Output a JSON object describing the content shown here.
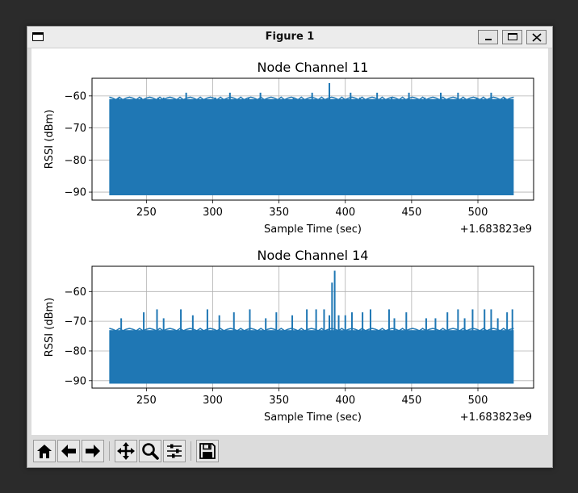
{
  "window": {
    "title": "Figure 1",
    "controls": [
      "minimize",
      "maximize",
      "close"
    ]
  },
  "toolbar": {
    "buttons": [
      {
        "name": "home-icon",
        "label": "Home"
      },
      {
        "name": "back-icon",
        "label": "Back"
      },
      {
        "name": "forward-icon",
        "label": "Forward"
      },
      {
        "name": "pan-icon",
        "label": "Pan"
      },
      {
        "name": "zoom-icon",
        "label": "Zoom"
      },
      {
        "name": "configure-subplots-icon",
        "label": "Configure subplots"
      },
      {
        "name": "save-icon",
        "label": "Save"
      }
    ]
  },
  "colors": {
    "series": "#1f77b4",
    "grid": "#b0b0b0"
  },
  "chart_data": [
    {
      "type": "line",
      "title": "Node Channel 11",
      "xlabel": "Sample Time (sec)",
      "ylabel": "RSSI (dBm)",
      "offset_text": "+1.683823e9",
      "xlim": [
        209,
        542
      ],
      "ylim": [
        -92.5,
        -54.5
      ],
      "xticks": [
        250,
        300,
        350,
        400,
        450,
        500
      ],
      "yticks": [
        -60,
        -70,
        -80,
        -90
      ],
      "grid": true,
      "series": [
        {
          "x_range": [
            222,
            527
          ],
          "floor": -91,
          "base_top": -61,
          "spikes": [
            [
              229,
              -60.5
            ],
            [
              246,
              -60.5
            ],
            [
              259,
              -60.5
            ],
            [
              263,
              -60.5
            ],
            [
              280,
              -59
            ],
            [
              302,
              -60.5
            ],
            [
              313,
              -59
            ],
            [
              327,
              -60.5
            ],
            [
              336,
              -59
            ],
            [
              361,
              -60.5
            ],
            [
              375,
              -59
            ],
            [
              388,
              -56
            ],
            [
              404,
              -59
            ],
            [
              411,
              -60.5
            ],
            [
              424,
              -59
            ],
            [
              435,
              -60.5
            ],
            [
              448,
              -59
            ],
            [
              460,
              -60.5
            ],
            [
              472,
              -59
            ],
            [
              485,
              -59
            ],
            [
              499,
              -60.5
            ],
            [
              510,
              -59
            ],
            [
              520,
              -60.5
            ]
          ]
        }
      ]
    },
    {
      "type": "line",
      "title": "Node Channel 14",
      "xlabel": "Sample Time (sec)",
      "ylabel": "RSSI (dBm)",
      "offset_text": "+1.683823e9",
      "xlim": [
        209,
        542
      ],
      "ylim": [
        -92.5,
        -51.5
      ],
      "xticks": [
        250,
        300,
        350,
        400,
        450,
        500
      ],
      "yticks": [
        -60,
        -70,
        -80,
        -90
      ],
      "grid": true,
      "series": [
        {
          "x_range": [
            222,
            527
          ],
          "floor": -91,
          "base_top": -73,
          "spikes": [
            [
              231,
              -69
            ],
            [
              248,
              -67
            ],
            [
              258,
              -66
            ],
            [
              263,
              -69
            ],
            [
              276,
              -66
            ],
            [
              285,
              -68
            ],
            [
              296,
              -66
            ],
            [
              305,
              -68
            ],
            [
              316,
              -67
            ],
            [
              328,
              -66
            ],
            [
              340,
              -69
            ],
            [
              348,
              -67
            ],
            [
              360,
              -68
            ],
            [
              371,
              -66
            ],
            [
              378,
              -66
            ],
            [
              384,
              -66
            ],
            [
              388,
              -68
            ],
            [
              390,
              -57
            ],
            [
              392,
              -53
            ],
            [
              395,
              -68
            ],
            [
              400,
              -68
            ],
            [
              405,
              -67
            ],
            [
              413,
              -67
            ],
            [
              419,
              -66
            ],
            [
              433,
              -66
            ],
            [
              437,
              -69
            ],
            [
              446,
              -67
            ],
            [
              461,
              -69
            ],
            [
              468,
              -69
            ],
            [
              477,
              -67
            ],
            [
              485,
              -66
            ],
            [
              490,
              -69
            ],
            [
              496,
              -66
            ],
            [
              505,
              -66
            ],
            [
              510,
              -66
            ],
            [
              515,
              -69
            ],
            [
              522,
              -67
            ],
            [
              526,
              -66
            ]
          ]
        }
      ]
    }
  ]
}
